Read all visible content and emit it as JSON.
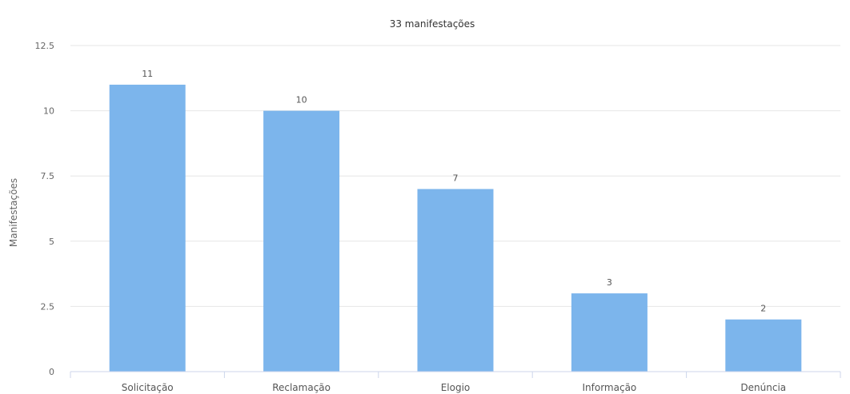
{
  "chart_data": {
    "type": "bar",
    "title": "33 manifestações",
    "xlabel": "",
    "ylabel": "Manifestações",
    "categories": [
      "Solicitação",
      "Reclamação",
      "Elogio",
      "Informação",
      "Denúncia"
    ],
    "values": [
      11,
      10,
      7,
      3,
      2
    ],
    "ylim": [
      0,
      12.5
    ],
    "yticks": [
      "0",
      "2.5",
      "5",
      "7.5",
      "10",
      "12.5"
    ],
    "ytick_values": [
      0,
      2.5,
      5,
      7.5,
      10,
      12.5
    ],
    "grid": true,
    "legend": "none",
    "colors": {
      "bar": "#7cb5ec"
    }
  }
}
